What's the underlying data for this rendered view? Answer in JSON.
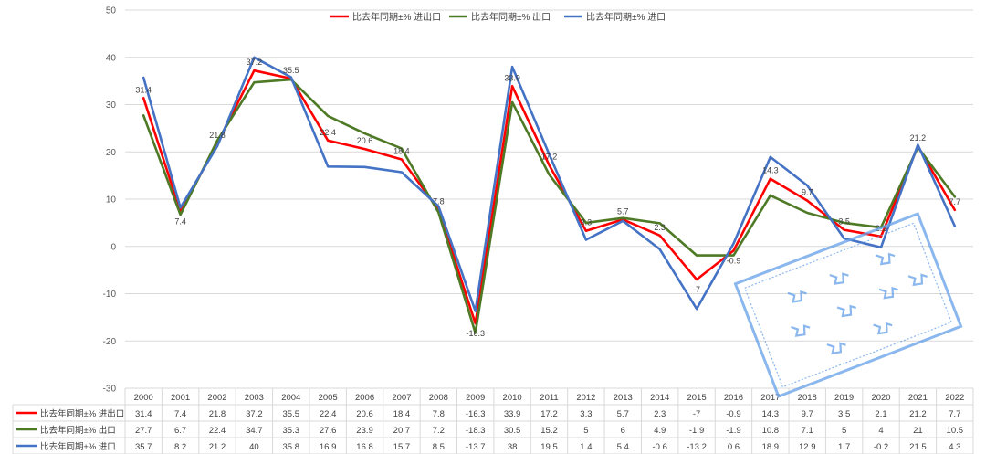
{
  "chart_data": {
    "type": "line",
    "title": "",
    "xlabel": "",
    "ylabel": "",
    "ylim": [
      -30,
      50
    ],
    "yticks": [
      -30,
      -20,
      -10,
      0,
      10,
      20,
      30,
      40,
      50
    ],
    "grid": true,
    "legend_placement": "top-center",
    "data_table": true,
    "categories": [
      "2000",
      "2001",
      "2002",
      "2003",
      "2004",
      "2005",
      "2006",
      "2007",
      "2008",
      "2009",
      "2010",
      "2011",
      "2012",
      "2013",
      "2014",
      "2015",
      "2016",
      "2017",
      "2018",
      "2019",
      "2020",
      "2021",
      "2022"
    ],
    "series": [
      {
        "name": "比去年同期±% 进出口",
        "color": "#ff0000",
        "values": [
          31.4,
          7.4,
          21.8,
          37.2,
          35.5,
          22.4,
          20.6,
          18.4,
          7.8,
          -16.3,
          33.9,
          17.2,
          3.3,
          5.7,
          2.3,
          -7,
          -0.9,
          14.3,
          9.7,
          3.5,
          2.1,
          21.2,
          7.7
        ]
      },
      {
        "name": "比去年同期±% 出口",
        "color": "#4e7a26",
        "values": [
          27.7,
          6.7,
          22.4,
          34.7,
          35.3,
          27.6,
          23.9,
          20.7,
          7.2,
          -18.3,
          30.5,
          15.2,
          5,
          6,
          4.9,
          -1.9,
          -1.9,
          10.8,
          7.1,
          5,
          4,
          21,
          10.5
        ]
      },
      {
        "name": "比去年同期±% 进口",
        "color": "#4472c4",
        "values": [
          35.7,
          8.2,
          21.2,
          40,
          35.8,
          16.9,
          16.8,
          15.7,
          8.5,
          -13.7,
          38,
          19.5,
          1.4,
          5.4,
          -0.6,
          -13.2,
          0.6,
          18.9,
          12.9,
          1.7,
          -0.2,
          21.5,
          4.3
        ]
      }
    ]
  },
  "stamp": {
    "color": "#6aa3e8",
    "text": ""
  }
}
